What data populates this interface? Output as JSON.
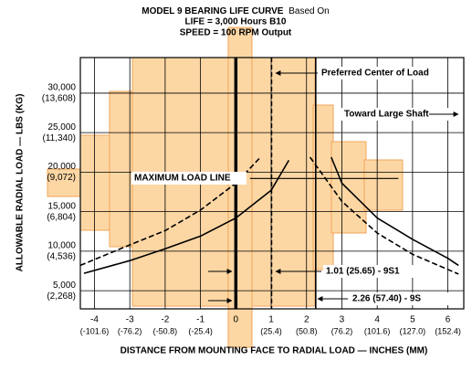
{
  "chart_data": {
    "type": "line",
    "title": "MODEL 9 BEARING LIFE CURVE",
    "title_suffix": "Based On",
    "subtitle_lines": [
      "LIFE = 3,000 Hours B10",
      "SPEED = 100 RPM Output"
    ],
    "xlabel": "DISTANCE FROM MOUNTING FACE TO RADIAL LOAD — INCHES (MM)",
    "ylabel": "ALLOWABLE RADIAL LOAD — LBS (KG)",
    "xlim": [
      -4.4,
      6.45
    ],
    "ylim": [
      2700,
      34500
    ],
    "xticks": [
      -4,
      -3,
      -2,
      -1,
      0,
      1,
      2,
      3,
      4,
      5,
      6
    ],
    "xticks_mm": [
      "(-101.6)",
      "(-76.2)",
      "(-50.8)",
      "(-25.4)",
      null,
      "(25.4)",
      "(50.8)",
      "(76.2)",
      "(101.6)",
      "(127.0)",
      "(152.4)"
    ],
    "yticks": [
      {
        "value": 5000,
        "label": "5,000"
      },
      {
        "value": 10000,
        "label": "10,000"
      },
      {
        "value": 15000,
        "label": "15,000"
      },
      {
        "value": 20000,
        "label": "20,000"
      },
      {
        "value": 25000,
        "label": "25,000"
      },
      {
        "value": 30000,
        "label": "30,000"
      }
    ],
    "yticks_kg": [
      "(2,268)",
      "(4,536)",
      "(6,804)",
      "(9,072)",
      "(11,340)",
      "(13,608)"
    ],
    "grid": true,
    "series": [
      {
        "color": "#000000",
        "style": "solid",
        "x": [
          -4.3,
          -3,
          -2,
          -1,
          0,
          1,
          1.5
        ],
        "values": [
          7200,
          8800,
          10300,
          11900,
          14200,
          17700,
          21500
        ]
      },
      {
        "color": "#000000",
        "style": "dashed",
        "x": [
          -4.4,
          -3,
          -2,
          -1,
          0,
          0.7
        ],
        "values": [
          8200,
          10800,
          12600,
          15200,
          18600,
          21900
        ]
      },
      {
        "color": "#000000",
        "style": "solid",
        "x": [
          2.7,
          3,
          4,
          5,
          6,
          6.3
        ],
        "values": [
          21900,
          18600,
          14200,
          11500,
          9100,
          8200
        ]
      },
      {
        "color": "#000000",
        "style": "dashed",
        "x": [
          2.1,
          3,
          4,
          5,
          6.3
        ],
        "values": [
          21900,
          16300,
          12300,
          9600,
          7100
        ]
      }
    ],
    "vlines": [
      {
        "x": 0,
        "style": "thick"
      },
      {
        "x": 1.01,
        "style": "dashed"
      },
      {
        "x": 2.26,
        "style": "solid"
      }
    ],
    "max_load_line": {
      "y": 19200,
      "x": [
        0.4,
        4.6
      ]
    },
    "annotations": {
      "preferred": "Preferred Center of Load",
      "toward": "Toward Large Shaft",
      "max_load": "MAXIMUM LOAD LINE",
      "s1": "1.01 (25.65) - 9S1",
      "s": "2.26 (57.40) - 9S"
    }
  }
}
